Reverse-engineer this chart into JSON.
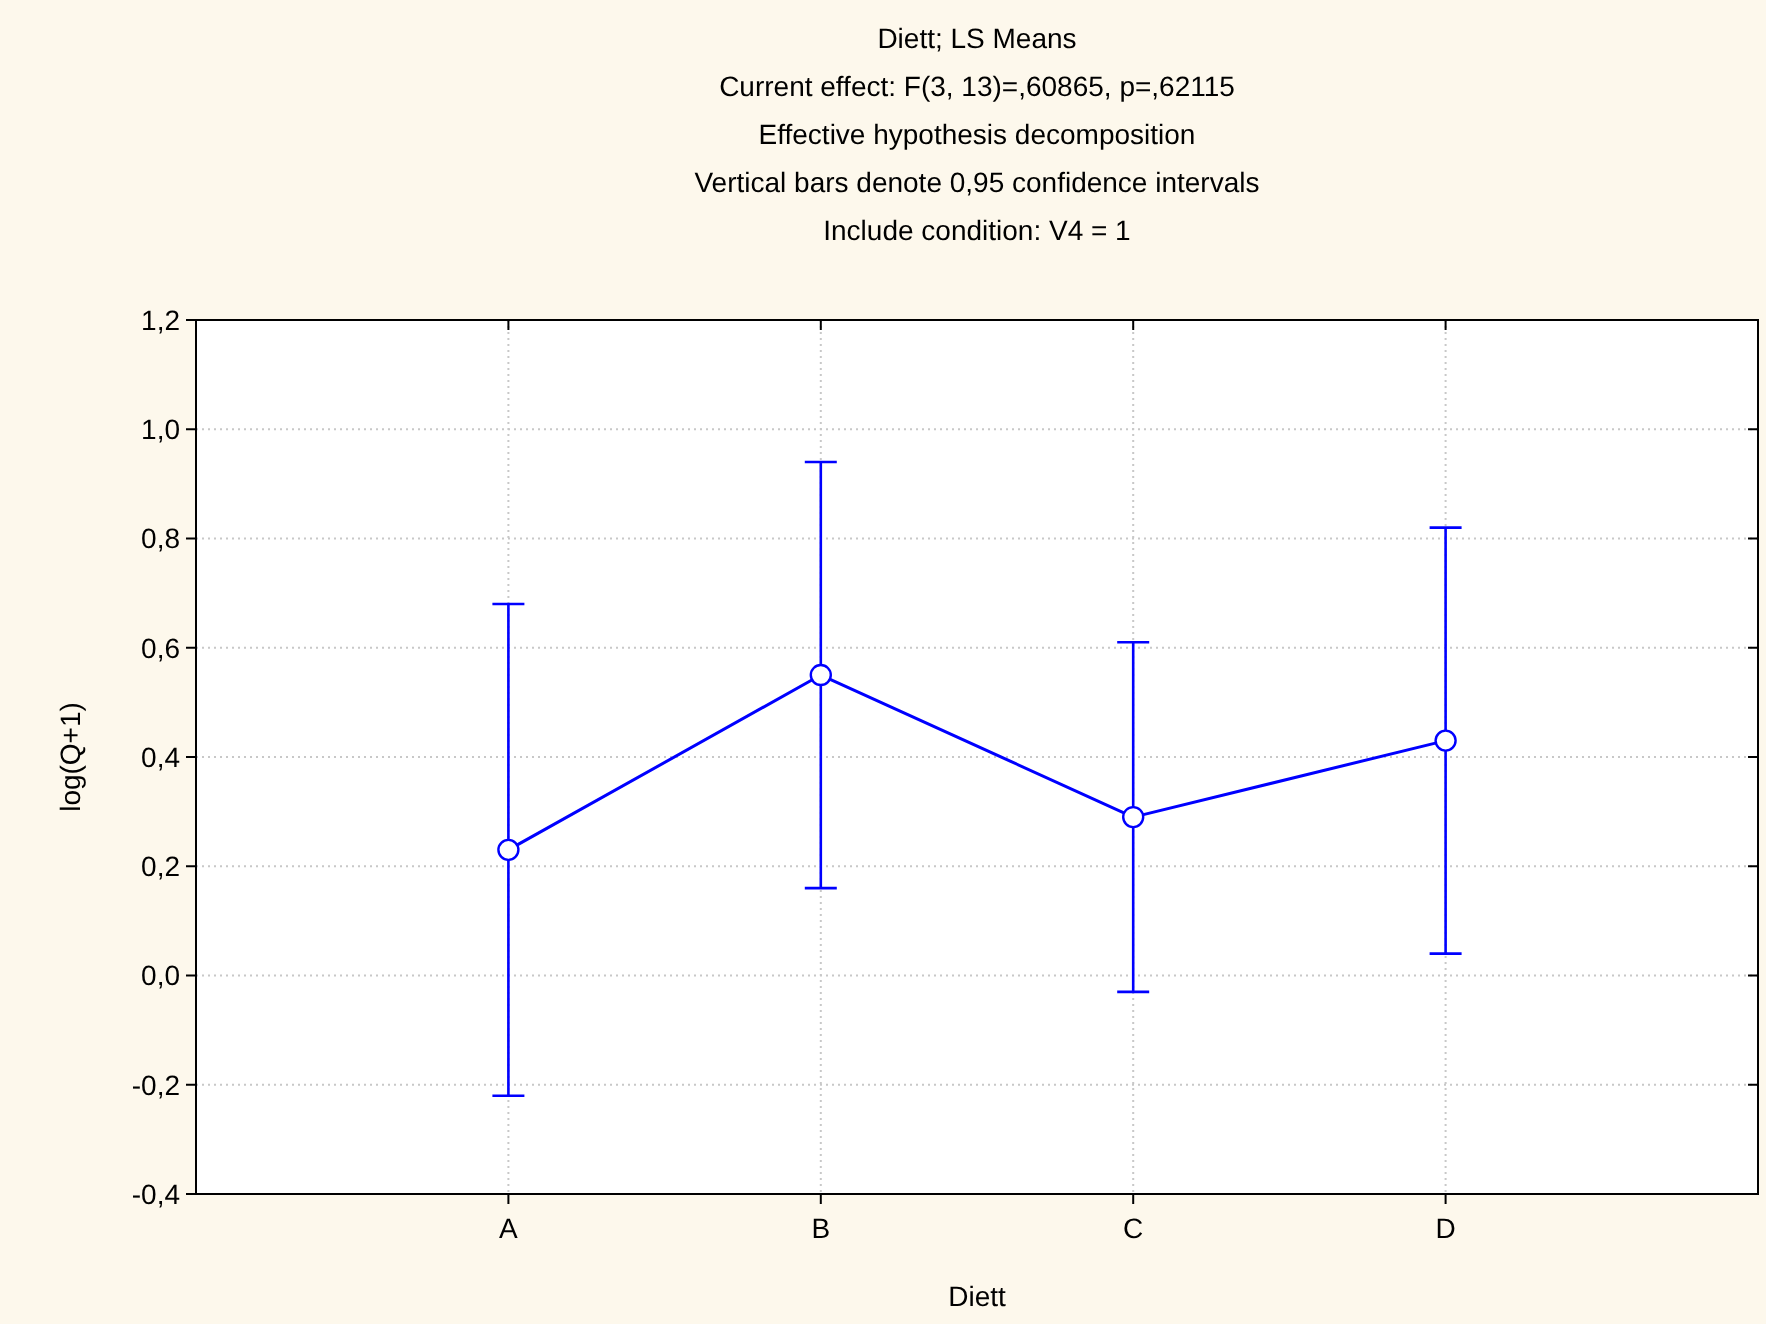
{
  "chart_data": {
    "type": "line",
    "title": "Diett; LS Means",
    "subtitle": "Current effect: F(3, 13)=,60865, p=,62115",
    "annotations": [
      "Effective hypothesis decomposition",
      "Vertical bars denote 0,95 confidence intervals",
      "Include condition: V4 = 1"
    ],
    "xlabel": "Diett",
    "ylabel": "log(Q+1)",
    "categories": [
      "A",
      "B",
      "C",
      "D"
    ],
    "series": [
      {
        "color": "#0000ff",
        "values": [
          0.23,
          0.55,
          0.29,
          0.43
        ],
        "errors": [
          0.45,
          0.39,
          0.32,
          0.39
        ]
      }
    ],
    "ylim": [
      -0.4,
      1.2
    ],
    "yticks": [
      {
        "value": -0.4,
        "label": "-0,4"
      },
      {
        "value": -0.2,
        "label": "-0,2"
      },
      {
        "value": 0,
        "label": "0,0"
      },
      {
        "value": 0.2,
        "label": "0,2"
      },
      {
        "value": 0.4,
        "label": "0,4"
      },
      {
        "value": 0.6,
        "label": "0,6"
      },
      {
        "value": 0.8,
        "label": "0,8"
      },
      {
        "value": 1,
        "label": "1,0"
      },
      {
        "value": 1.2,
        "label": "1,2"
      }
    ],
    "grid": true,
    "marker": "circle",
    "line_style": "solid"
  }
}
